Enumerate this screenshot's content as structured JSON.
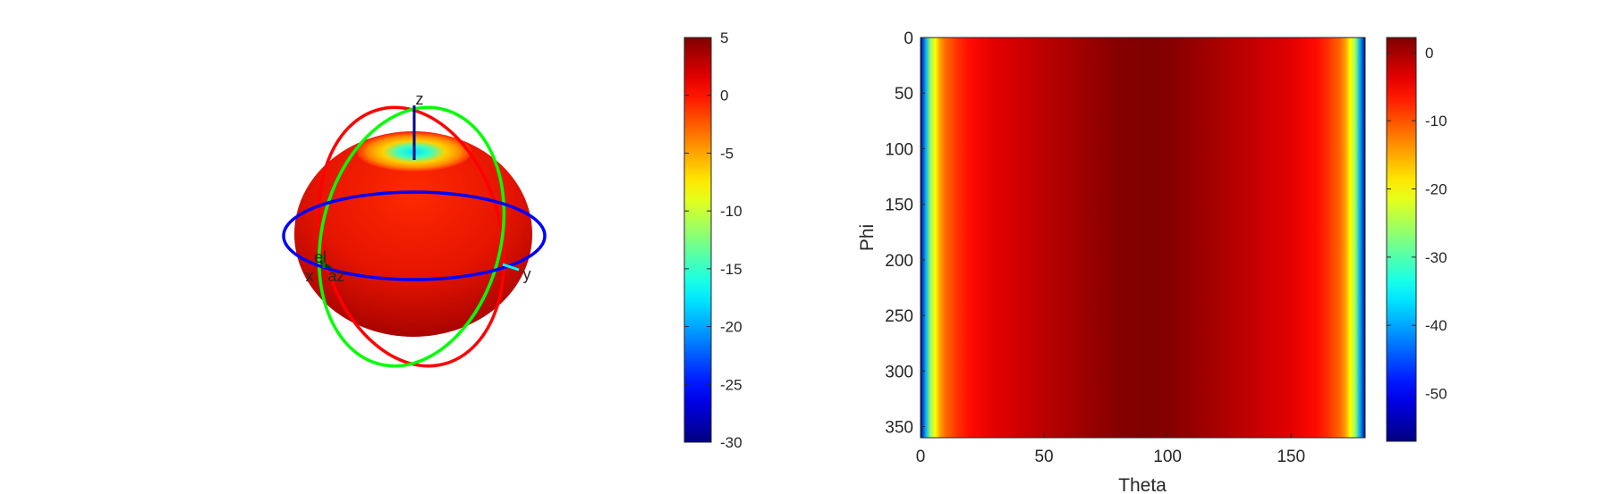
{
  "chart_data": [
    {
      "type": "3d-surface",
      "title": "",
      "axis_labels": {
        "x": "x",
        "y": "y",
        "z": "z",
        "az": "az",
        "el": "el"
      },
      "colors": {
        "body_dark": "#9e0000",
        "body_light": "#ff2a00",
        "top_ring": "#ffd200",
        "top_center": "#00e5ff",
        "azimuth_ring": "#0000ff",
        "elevation_ring_1": "#ff0000",
        "elevation_ring_2": "#00ff00",
        "axis": "#00008f"
      },
      "colorbar": {
        "colormap": "jet",
        "range": [
          -30,
          5
        ],
        "ticks": [
          5,
          0,
          -5,
          -10,
          -15,
          -20,
          -25,
          -30
        ],
        "tick_labels": [
          "5",
          "0",
          "-5",
          "-10",
          "-15",
          "-20",
          "-25",
          "-30"
        ]
      }
    },
    {
      "type": "heatmap",
      "title": "",
      "xlabel": "Theta",
      "ylabel": "Phi",
      "xlim": [
        0,
        180
      ],
      "ylim": [
        0,
        360
      ],
      "y_reversed": true,
      "xticks": [
        0,
        50,
        100,
        150
      ],
      "xtick_labels": [
        "0",
        "50",
        "100",
        "150"
      ],
      "yticks": [
        0,
        50,
        100,
        150,
        200,
        250,
        300,
        350
      ],
      "ytick_labels": [
        "0",
        "50",
        "100",
        "150",
        "200",
        "250",
        "300",
        "350"
      ],
      "theta_samples": [
        0,
        2,
        4,
        6,
        8,
        10,
        15,
        20,
        30,
        40,
        50,
        60,
        70,
        80,
        90,
        100,
        110,
        120,
        130,
        140,
        150,
        160,
        165,
        170,
        172,
        174,
        176,
        178,
        180
      ],
      "value_by_theta": [
        -57,
        -40,
        -26,
        -20,
        -14.5,
        -11.4,
        -8,
        -5.8,
        -3.6,
        -2.4,
        -1.3,
        -0.2,
        0.9,
        1.8,
        2.2,
        1.8,
        0.9,
        -0.2,
        -1.3,
        -2.4,
        -3.6,
        -5.8,
        -8,
        -11.4,
        -14.5,
        -20,
        -26,
        -40,
        -57
      ],
      "phi_dependence": "none",
      "colorbar": {
        "colormap": "jet",
        "range": [
          -57,
          2.2
        ],
        "ticks": [
          0,
          -10,
          -20,
          -30,
          -40,
          -50
        ],
        "tick_labels": [
          "0",
          "-10",
          "-20",
          "-30",
          "-40",
          "-50"
        ]
      }
    }
  ]
}
